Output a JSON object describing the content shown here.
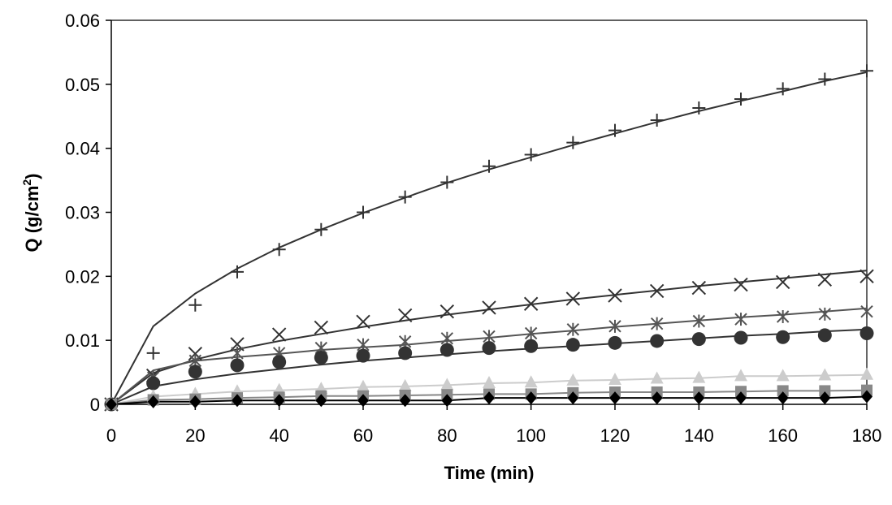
{
  "chart_data": {
    "type": "line",
    "title": "",
    "xlabel": "Time (min)",
    "ylabel_main": "Q (g/cm",
    "ylabel_sup": "2",
    "ylabel_end": ")",
    "xlim": [
      0,
      180
    ],
    "ylim": [
      0,
      0.06
    ],
    "xticks": [
      0,
      20,
      40,
      60,
      80,
      100,
      120,
      140,
      160,
      180
    ],
    "xtick_labels": [
      "0",
      "20",
      "40",
      "60",
      "80",
      "100",
      "120",
      "140",
      "160",
      "180"
    ],
    "yticks": [
      0,
      0.01,
      0.02,
      0.03,
      0.04,
      0.05,
      0.06
    ],
    "ytick_labels": [
      "0",
      "0.01",
      "0.02",
      "0.03",
      "0.04",
      "0.05",
      "0.06"
    ],
    "grid": false,
    "legend": "none",
    "x": [
      0,
      10,
      20,
      30,
      40,
      50,
      60,
      70,
      80,
      90,
      100,
      110,
      120,
      130,
      140,
      150,
      160,
      170,
      180
    ],
    "series": [
      {
        "name": "plus",
        "marker": "plus",
        "marker_color": "#333333",
        "points": [
          0,
          0.008,
          0.0155,
          0.0207,
          0.0242,
          0.0273,
          0.03,
          0.0324,
          0.0347,
          0.0372,
          0.039,
          0.0409,
          0.0428,
          0.0444,
          0.0463,
          0.0477,
          0.0493,
          0.0508,
          0.0521
        ],
        "fit_color": "#333333",
        "fit": [
          0,
          0.0122,
          0.0173,
          0.0212,
          0.0245,
          0.0273,
          0.0299,
          0.0323,
          0.0346,
          0.0367,
          0.0386,
          0.0405,
          0.0423,
          0.0441,
          0.0458,
          0.0474,
          0.0489,
          0.0505,
          0.0519
        ]
      },
      {
        "name": "cross",
        "marker": "x",
        "marker_color": "#333333",
        "points": [
          0,
          0.0045,
          0.0079,
          0.0094,
          0.0109,
          0.012,
          0.0129,
          0.0139,
          0.0145,
          0.0151,
          0.0157,
          0.0165,
          0.017,
          0.0177,
          0.0182,
          0.0187,
          0.0191,
          0.0195,
          0.02
        ],
        "fit_color": "#333333",
        "fit": [
          0,
          0.0049,
          0.007,
          0.0086,
          0.0099,
          0.011,
          0.0121,
          0.0131,
          0.014,
          0.0148,
          0.0156,
          0.0164,
          0.0171,
          0.0178,
          0.0185,
          0.0191,
          0.0197,
          0.0203,
          0.0209
        ]
      },
      {
        "name": "asterisk",
        "marker": "asterisk",
        "marker_color": "#555555",
        "points": [
          0,
          0.0042,
          0.0068,
          0.008,
          0.008,
          0.0088,
          0.0093,
          0.0098,
          0.0103,
          0.0106,
          0.0111,
          0.0117,
          0.0122,
          0.0126,
          0.013,
          0.0133,
          0.0137,
          0.0141,
          0.0145
        ],
        "fit_color": "#555555",
        "fit": [
          0,
          0.0053,
          0.0068,
          0.0074,
          0.0079,
          0.0085,
          0.0089,
          0.0093,
          0.0099,
          0.0104,
          0.011,
          0.0115,
          0.0121,
          0.0126,
          0.0131,
          0.0136,
          0.014,
          0.0145,
          0.015
        ]
      },
      {
        "name": "circle",
        "marker": "circle",
        "marker_color": "#333333",
        "points": [
          0,
          0.0033,
          0.0051,
          0.0061,
          0.0066,
          0.0073,
          0.0076,
          0.008,
          0.0085,
          0.0088,
          0.0091,
          0.0093,
          0.0096,
          0.0099,
          0.0102,
          0.0104,
          0.0105,
          0.0108,
          0.0111
        ],
        "fit_color": "#333333",
        "fit": [
          0,
          0.0028,
          0.0039,
          0.0048,
          0.0055,
          0.0062,
          0.0068,
          0.0073,
          0.0078,
          0.0083,
          0.0087,
          0.0091,
          0.0095,
          0.0099,
          0.0103,
          0.0107,
          0.011,
          0.0114,
          0.0117
        ]
      },
      {
        "name": "triangle",
        "marker": "triangle",
        "marker_color": "#cccccc",
        "points": [
          0,
          0.0012,
          0.0016,
          0.002,
          0.0022,
          0.0024,
          0.0027,
          0.0028,
          0.003,
          0.0033,
          0.0034,
          0.0037,
          0.0038,
          0.004,
          0.0041,
          0.0044,
          0.0044,
          0.0045,
          0.0046
        ],
        "fit_color": "#cccccc",
        "fit": [
          0,
          0.0012,
          0.0016,
          0.002,
          0.0022,
          0.0024,
          0.0027,
          0.0028,
          0.003,
          0.0033,
          0.0034,
          0.0037,
          0.0038,
          0.004,
          0.0041,
          0.0044,
          0.0044,
          0.0045,
          0.0046
        ]
      },
      {
        "name": "square",
        "marker": "square",
        "marker_color": "#888888",
        "points": [
          0,
          0.0007,
          0.0008,
          0.001,
          0.0011,
          0.0013,
          0.0013,
          0.0014,
          0.0015,
          0.0016,
          0.0016,
          0.0018,
          0.0019,
          0.0019,
          0.0019,
          0.002,
          0.0021,
          0.0021,
          0.0022
        ],
        "fit_color": "#888888",
        "fit": [
          0,
          0.0007,
          0.0008,
          0.001,
          0.0011,
          0.0013,
          0.0013,
          0.0014,
          0.0015,
          0.0016,
          0.0016,
          0.0018,
          0.0019,
          0.0019,
          0.0019,
          0.002,
          0.0021,
          0.0021,
          0.0022
        ]
      },
      {
        "name": "diamond",
        "marker": "diamond",
        "marker_color": "#000000",
        "points": [
          0,
          0.0004,
          0.0004,
          0.0006,
          0.0006,
          0.0006,
          0.0006,
          0.0006,
          0.0006,
          0.001,
          0.001,
          0.001,
          0.001,
          0.001,
          0.001,
          0.001,
          0.001,
          0.001,
          0.0012
        ],
        "fit_color": "#000000",
        "fit": [
          0,
          0.0004,
          0.0004,
          0.0006,
          0.0006,
          0.0006,
          0.0006,
          0.0006,
          0.0006,
          0.001,
          0.001,
          0.001,
          0.001,
          0.001,
          0.001,
          0.001,
          0.001,
          0.001,
          0.0012
        ]
      }
    ]
  }
}
